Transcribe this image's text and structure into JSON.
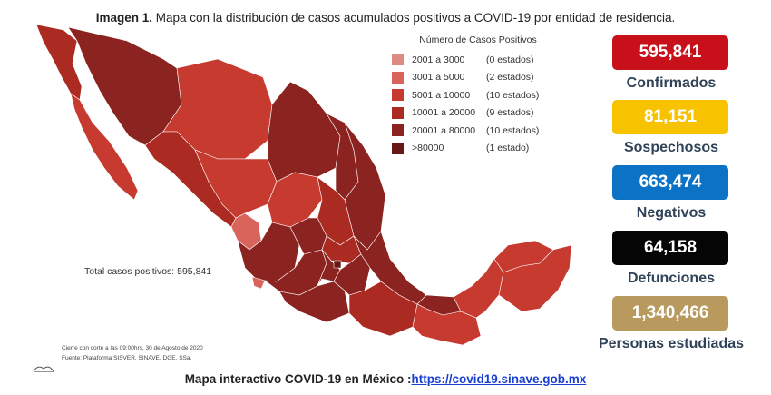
{
  "title": {
    "prefix": "Imagen 1.",
    "text": " Mapa con la distribución de casos acumulados positivos a COVID-19 por entidad de residencia."
  },
  "legend": {
    "title": "Número de Casos Positivos",
    "items": [
      {
        "range": "2001 a  3000",
        "count": "(0 estados)",
        "color": "#e08a84"
      },
      {
        "range": "3001 a  5000",
        "count": "(2 estados)",
        "color": "#d9645b"
      },
      {
        "range": "5001 a 10000",
        "count": "(10 estados)",
        "color": "#c63a30"
      },
      {
        "range": "10001 a 20000",
        "count": "(9 estados)",
        "color": "#ab2a22"
      },
      {
        "range": "20001 a 80000",
        "count": "(10 estados)",
        "color": "#8b2320"
      },
      {
        "range": ">80000",
        "count": "(1 estado)",
        "color": "#651815"
      }
    ]
  },
  "total_label": "Total casos positivos: 595,841",
  "footnote": {
    "cutoff": "Cierre con corte a las 09:00hrs, 30 de Agosto de 2020",
    "source": "Fuente: Plataforma SISVER, SINAVE, DGE, SSa."
  },
  "stats": [
    {
      "value": "595,841",
      "label": "Confirmados",
      "color": "#c8101a"
    },
    {
      "value": "81,151",
      "label": "Sospechosos",
      "color": "#f7c200"
    },
    {
      "value": "663,474",
      "label": "Negativos",
      "color": "#0b72c6"
    },
    {
      "value": "64,158",
      "label": "Defunciones",
      "color": "#050505"
    },
    {
      "value": "1,340,466",
      "label": "Personas estudiadas",
      "color": "#b99a5e"
    }
  ],
  "bottom": {
    "text": "Mapa interactivo COVID-19 en México :",
    "link": "https://covid19.sinave.gob.mx"
  }
}
